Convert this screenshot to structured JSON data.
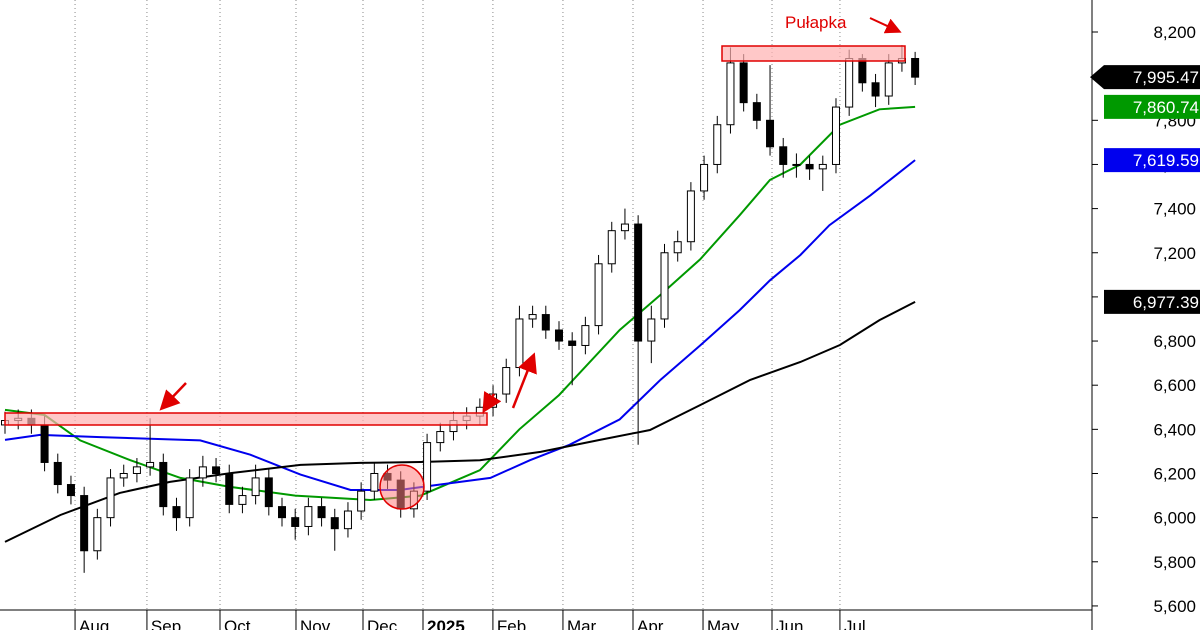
{
  "chart_data": {
    "type": "candlestick",
    "annotation": "Pułapka",
    "xlim": [
      -0.38,
      82.41
    ],
    "ylim": [
      5491,
      8345
    ],
    "xticks": [
      {
        "value": 5.31,
        "label": "Aug"
      },
      {
        "value": 10.76,
        "label": "Sep"
      },
      {
        "value": 16.3,
        "label": "Oct"
      },
      {
        "value": 22.06,
        "label": "Nov"
      },
      {
        "value": 27.14,
        "label": "Dec"
      },
      {
        "value": 31.69,
        "label": "2025",
        "bold": true
      },
      {
        "value": 36.99,
        "label": "Feb"
      },
      {
        "value": 42.3,
        "label": "Mar"
      },
      {
        "value": 47.61,
        "label": "Apr"
      },
      {
        "value": 52.92,
        "label": "May"
      },
      {
        "value": 58.15,
        "label": "Jun"
      },
      {
        "value": 63.3,
        "label": "Jul"
      }
    ],
    "yticks": [
      {
        "value": 5600,
        "label": "5,600"
      },
      {
        "value": 5800,
        "label": "5,800"
      },
      {
        "value": 6000,
        "label": "6,000"
      },
      {
        "value": 6200,
        "label": "6,200"
      },
      {
        "value": 6400,
        "label": "6,400"
      },
      {
        "value": 6600,
        "label": "6,600"
      },
      {
        "value": 6800,
        "label": "6,800"
      },
      {
        "value": 7000,
        "label": "7,000"
      },
      {
        "value": 7200,
        "label": "7,200"
      },
      {
        "value": 7400,
        "label": "7,400"
      },
      {
        "value": 7600,
        "label": "7,600"
      },
      {
        "value": 7800,
        "label": "7,800"
      },
      {
        "value": 8000,
        "label": "8,000"
      },
      {
        "value": 8200,
        "label": "8,200"
      }
    ],
    "up_color": "#ffffff",
    "down_color": "#000000",
    "open": [
      6420,
      6440,
      6450,
      6420,
      6250,
      6150,
      6100,
      5850,
      6000,
      6180,
      6200,
      6230,
      6250,
      6050,
      6000,
      6180,
      6230,
      6200,
      6060,
      6100,
      6180,
      6050,
      6000,
      5960,
      6050,
      6000,
      5950,
      6030,
      6120,
      6200,
      6170,
      6040,
      6120,
      6340,
      6390,
      6440,
      6460,
      6500,
      6560,
      6680,
      6900,
      6920,
      6850,
      6800,
      6780,
      6870,
      7150,
      7300,
      7330,
      6800,
      6900,
      7200,
      7250,
      7480,
      7600,
      7780,
      8060,
      7880,
      7800,
      7680,
      7600,
      7600,
      7580,
      7600,
      7860,
      8080,
      7970,
      7910,
      8060,
      8080
    ],
    "high": [
      6480,
      6490,
      6490,
      6460,
      6290,
      6190,
      6140,
      6040,
      6220,
      6240,
      6270,
      6450,
      6290,
      6090,
      6220,
      6280,
      6270,
      6240,
      6140,
      6240,
      6220,
      6090,
      6040,
      6090,
      6090,
      6040,
      6070,
      6160,
      6250,
      6240,
      6210,
      6160,
      6380,
      6430,
      6480,
      6500,
      6540,
      6600,
      6720,
      6960,
      6960,
      6960,
      6890,
      6840,
      6910,
      7190,
      7340,
      7400,
      7370,
      6960,
      7240,
      7300,
      7520,
      7640,
      7820,
      8130,
      8100,
      7920,
      8050,
      7720,
      7650,
      7640,
      7640,
      7900,
      8120,
      8100,
      8010,
      8100,
      8140,
      8110
    ],
    "low": [
      6380,
      6400,
      6380,
      6210,
      6110,
      6060,
      5750,
      5810,
      5960,
      6140,
      6160,
      6190,
      6010,
      5940,
      5960,
      6140,
      6160,
      6020,
      6020,
      6060,
      6010,
      5960,
      5900,
      5920,
      5960,
      5850,
      5910,
      5990,
      6080,
      6130,
      6000,
      6000,
      6080,
      6300,
      6350,
      6400,
      6420,
      6460,
      6520,
      6640,
      6860,
      6810,
      6760,
      6600,
      6740,
      6830,
      7110,
      7260,
      6330,
      6700,
      6860,
      7160,
      7210,
      7440,
      7560,
      7740,
      7840,
      7760,
      7640,
      7540,
      7540,
      7530,
      7480,
      7560,
      7820,
      7930,
      7860,
      7870,
      8020,
      7960
    ],
    "close": [
      6440,
      6450,
      6420,
      6250,
      6150,
      6100,
      5850,
      6000,
      6180,
      6200,
      6230,
      6250,
      6050,
      6000,
      6180,
      6230,
      6200,
      6060,
      6100,
      6180,
      6050,
      6000,
      5960,
      6050,
      6000,
      5950,
      6030,
      6120,
      6200,
      6170,
      6040,
      6120,
      6340,
      6390,
      6440,
      6460,
      6500,
      6560,
      6680,
      6900,
      6920,
      6850,
      6800,
      6780,
      6870,
      7150,
      7300,
      7330,
      6800,
      6900,
      7200,
      7250,
      7480,
      7600,
      7780,
      8060,
      7880,
      7800,
      7680,
      7600,
      7600,
      7580,
      7600,
      7860,
      8080,
      7970,
      7910,
      8060,
      8080,
      7995.47
    ],
    "last_price": {
      "value": 7995.47,
      "label": "7,995.47",
      "color": "#000000"
    },
    "lines": [
      {
        "color": "#009900",
        "x": [
          0,
          3,
          5.7,
          9.5,
          13.3,
          17,
          22,
          27.7,
          31.5,
          36,
          39,
          42,
          46.6,
          49.7,
          52.7,
          55.7,
          58,
          60.3,
          63.3,
          66.3,
          69
        ],
        "values": [
          6488,
          6465,
          6350,
          6260,
          6180,
          6140,
          6100,
          6080,
          6100,
          6215,
          6400,
          6555,
          6850,
          7010,
          7170,
          7370,
          7530,
          7600,
          7780,
          7850,
          7860.74
        ],
        "last": {
          "value": 7860.74,
          "label": "7,860.74"
        }
      },
      {
        "color": "#0000ee",
        "x": [
          0,
          2.65,
          7.2,
          14.8,
          18.6,
          22.4,
          26.2,
          29.9,
          33,
          36.8,
          39.8,
          42.8,
          46.6,
          49.7,
          52.7,
          55.7,
          58,
          60.3,
          62.5,
          65.6,
          69
        ],
        "values": [
          6352,
          6375,
          6365,
          6350,
          6285,
          6195,
          6125,
          6125,
          6150,
          6180,
          6260,
          6330,
          6445,
          6625,
          6780,
          6940,
          7075,
          7190,
          7325,
          7460,
          7619.59
        ],
        "last": {
          "value": 7619.59,
          "label": "7,619.59"
        }
      },
      {
        "color": "#000000",
        "x": [
          0,
          4.2,
          8.7,
          12.5,
          17.1,
          22.4,
          26.9,
          31.5,
          36,
          40.6,
          45.1,
          48.9,
          52.7,
          56.5,
          60.3,
          63.3,
          66.3,
          69
        ],
        "values": [
          5890,
          6012,
          6112,
          6162,
          6202,
          6239,
          6248,
          6252,
          6260,
          6298,
          6352,
          6397,
          6510,
          6624,
          6705,
          6782,
          6895,
          6977.39
        ],
        "last": {
          "value": 6977.39,
          "label": "6,977.39"
        }
      }
    ]
  }
}
